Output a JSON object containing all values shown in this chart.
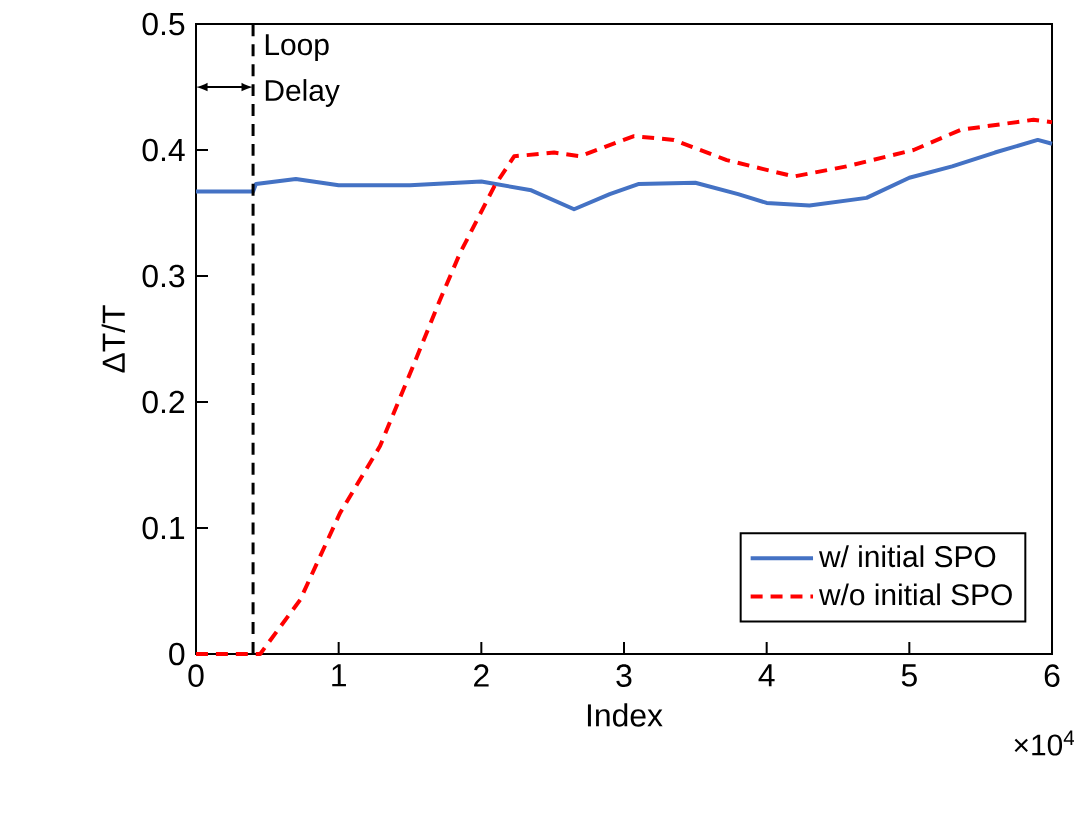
{
  "chart_data": {
    "type": "line",
    "xlabel": "Index",
    "ylabel": "ΔT/T",
    "xlim": [
      0,
      6
    ],
    "xticks": [
      0,
      1,
      2,
      3,
      4,
      5,
      6
    ],
    "ylim": [
      0,
      0.5
    ],
    "yticks": [
      0,
      0.1,
      0.2,
      0.3,
      0.4,
      0.5
    ],
    "legend": "bottom right",
    "grid": false,
    "series": [
      {
        "name": "w/   initial SPO",
        "color": "#4472c4",
        "line_style": "solid",
        "x": [
          0,
          0.4,
          0.42,
          0.7,
          1.0,
          1.5,
          2.0,
          2.35,
          2.65,
          2.9,
          3.1,
          3.5,
          3.8,
          4.0,
          4.3,
          4.7,
          5.0,
          5.3,
          5.6,
          5.9,
          6.0
        ],
        "values": [
          0.367,
          0.367,
          0.373,
          0.377,
          0.372,
          0.372,
          0.375,
          0.368,
          0.353,
          0.365,
          0.373,
          0.374,
          0.365,
          0.358,
          0.356,
          0.362,
          0.378,
          0.387,
          0.398,
          0.408,
          0.405
        ]
      },
      {
        "name": "w/o initial SPO",
        "color": "#ff0000",
        "line_style": "dashed",
        "x": [
          0,
          0.4,
          0.45,
          0.73,
          1.01,
          1.29,
          1.52,
          1.71,
          1.85,
          2.09,
          2.23,
          2.51,
          2.69,
          3.07,
          3.35,
          3.72,
          4.19,
          4.56,
          5.03,
          5.36,
          5.87,
          6.0
        ],
        "values": [
          0,
          0,
          0,
          0.043,
          0.112,
          0.165,
          0.228,
          0.281,
          0.318,
          0.371,
          0.395,
          0.398,
          0.395,
          0.411,
          0.408,
          0.392,
          0.379,
          0.387,
          0.4,
          0.416,
          0.424,
          0.422
        ]
      }
    ],
    "ref_lines": [
      {
        "axis": "x",
        "value": 0.4,
        "label": "Loop Delay",
        "color": "#000000",
        "line_style": "dashed"
      }
    ],
    "annotations": [
      "×10$^{4}$"
    ]
  }
}
